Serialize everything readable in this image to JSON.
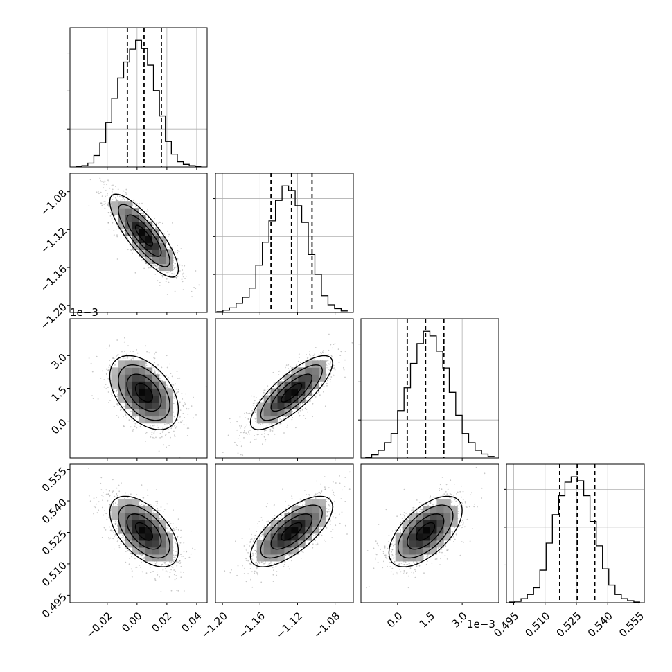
{
  "chart_data": {
    "type": "corner",
    "parameters": 4,
    "quantiles": [
      0.16,
      0.5,
      0.84
    ],
    "grid": true,
    "axes": [
      {
        "label": "",
        "range": [
          -0.045,
          0.047
        ],
        "ticks": [
          -0.02,
          0.0,
          0.02,
          0.04
        ],
        "tick_labels": [
          "−0.02",
          "0.00",
          "0.02",
          "0.04"
        ],
        "offset": ""
      },
      {
        "label": "",
        "range": [
          -1.2075,
          -1.0605
        ],
        "ticks": [
          -1.2,
          -1.16,
          -1.12,
          -1.08
        ],
        "tick_labels": [
          "−1.20",
          "−1.16",
          "−1.12",
          "−1.08"
        ],
        "offset": ""
      },
      {
        "label": "",
        "range": [
          -0.0017,
          0.0047
        ],
        "ticks": [
          0.0,
          0.0015,
          0.003
        ],
        "tick_labels": [
          "0.0",
          "1.5",
          "3.0"
        ],
        "offset": "1e−3"
      },
      {
        "label": "",
        "range": [
          0.4915,
          0.5575
        ],
        "ticks": [
          0.495,
          0.51,
          0.525,
          0.54,
          0.555
        ],
        "tick_labels": [
          "0.495",
          "0.510",
          "0.525",
          "0.540",
          "0.555"
        ],
        "offset": ""
      }
    ],
    "marginals": [
      {
        "param": 0,
        "bin_edges": [
          -0.041,
          -0.037,
          -0.033,
          -0.029,
          -0.025,
          -0.021,
          -0.017,
          -0.013,
          -0.009,
          -0.005,
          -0.001,
          0.003,
          0.007,
          0.011,
          0.015,
          0.019,
          0.023,
          0.027,
          0.031,
          0.035,
          0.039,
          0.043
        ],
        "counts": [
          1,
          2,
          6,
          18,
          38,
          70,
          108,
          140,
          165,
          185,
          199,
          186,
          160,
          120,
          80,
          40,
          20,
          8,
          4,
          2,
          1
        ],
        "quantile_values": [
          -0.0065,
          0.0047,
          0.0163
        ]
      },
      {
        "param": 1,
        "bin_edges": [
          -1.2065,
          -1.1995,
          -1.1925,
          -1.1855,
          -1.1785,
          -1.1715,
          -1.1645,
          -1.1575,
          -1.1505,
          -1.1435,
          -1.1365,
          -1.1295,
          -1.1225,
          -1.1155,
          -1.1085,
          -1.1015,
          -1.0945,
          -1.0875,
          -1.0805,
          -1.0735,
          -1.0665
        ],
        "counts": [
          1,
          3,
          6,
          12,
          20,
          32,
          62,
          92,
          120,
          147,
          166,
          160,
          140,
          118,
          76,
          50,
          22,
          10,
          5,
          2
        ],
        "quantile_values": [
          -1.1483,
          -1.1264,
          -1.1045
        ]
      },
      {
        "param": 2,
        "bin_edges": [
          -0.0015,
          -0.0012,
          -0.0009,
          -0.0006,
          -0.0003,
          0.0,
          0.0003,
          0.0006,
          0.0009,
          0.0012,
          0.0015,
          0.0018,
          0.0021,
          0.0024,
          0.0027,
          0.003,
          0.0033,
          0.0036,
          0.0039,
          0.0042,
          0.0045
        ],
        "counts": [
          1,
          4,
          10,
          20,
          32,
          62,
          92,
          124,
          150,
          166,
          160,
          140,
          118,
          86,
          56,
          32,
          20,
          10,
          5,
          2
        ],
        "quantile_values": [
          0.00045,
          0.0013,
          0.00215
        ]
      },
      {
        "param": 3,
        "bin_edges": [
          0.4925,
          0.4955,
          0.4985,
          0.5015,
          0.5045,
          0.5075,
          0.5105,
          0.5135,
          0.5165,
          0.5195,
          0.5225,
          0.5255,
          0.5285,
          0.5315,
          0.5345,
          0.5375,
          0.5405,
          0.5435,
          0.5465,
          0.5495,
          0.5525,
          0.5555
        ],
        "counts": [
          1,
          2,
          6,
          12,
          22,
          48,
          88,
          130,
          158,
          178,
          186,
          180,
          158,
          120,
          84,
          50,
          26,
          12,
          6,
          3,
          1
        ],
        "quantile_values": [
          0.517,
          0.5254,
          0.5338
        ]
      }
    ],
    "joints": [
      {
        "x": 0,
        "y": 1,
        "mean": [
          0.0047,
          -1.1264
        ],
        "sd": [
          0.0115,
          0.0219
        ],
        "corr": -0.82
      },
      {
        "x": 0,
        "y": 2,
        "mean": [
          0.0047,
          0.0013
        ],
        "sd": [
          0.0115,
          0.00085
        ],
        "corr": -0.45
      },
      {
        "x": 1,
        "y": 2,
        "mean": [
          -1.1264,
          0.0013
        ],
        "sd": [
          0.0219,
          0.00085
        ],
        "corr": 0.8
      },
      {
        "x": 0,
        "y": 3,
        "mean": [
          0.0047,
          0.5254
        ],
        "sd": [
          0.0115,
          0.0084
        ],
        "corr": -0.55
      },
      {
        "x": 1,
        "y": 3,
        "mean": [
          -1.1264,
          0.5254
        ],
        "sd": [
          0.0219,
          0.0084
        ],
        "corr": 0.7
      },
      {
        "x": 2,
        "y": 3,
        "mean": [
          0.0013,
          0.5254
        ],
        "sd": [
          0.00085,
          0.0084
        ],
        "corr": 0.6
      }
    ],
    "contour_levels_sigma": [
      0.5,
      1.0,
      1.5,
      2.0
    ]
  }
}
